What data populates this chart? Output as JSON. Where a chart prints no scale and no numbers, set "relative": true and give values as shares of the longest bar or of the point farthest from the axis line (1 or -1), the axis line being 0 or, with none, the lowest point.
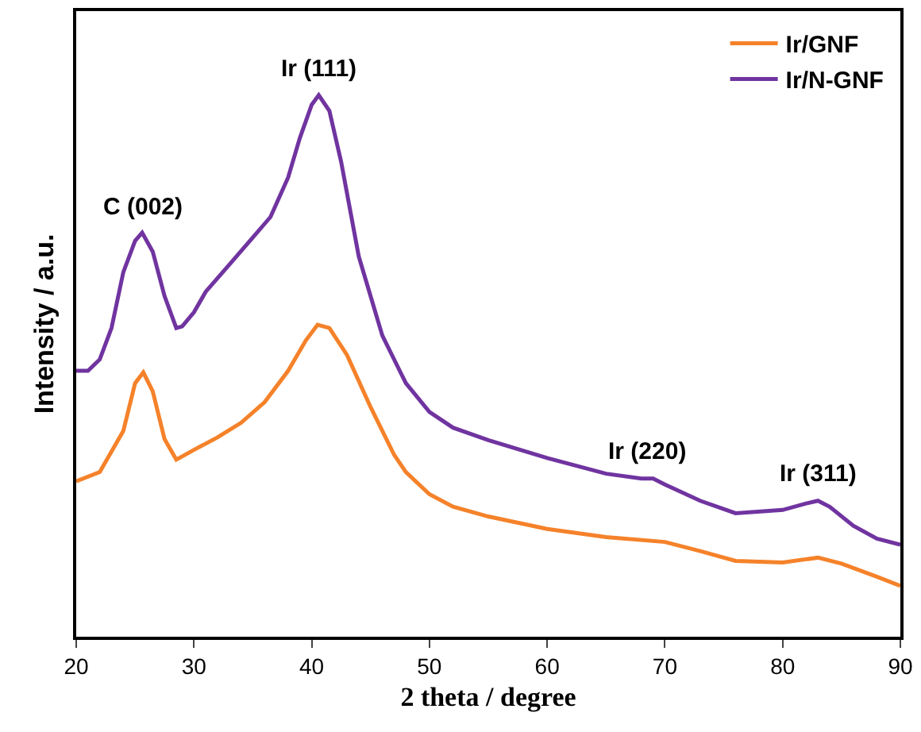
{
  "chart_data": {
    "type": "line",
    "relative": true,
    "xlabel": "2 theta / degree",
    "ylabel": "Intensity / a.u.",
    "xlim": [
      20,
      90
    ],
    "xticks": [
      20,
      30,
      40,
      50,
      60,
      70,
      80,
      90
    ],
    "legend": "top right",
    "marker": "none",
    "line_style": "solid",
    "tick_labels": "x",
    "series": [
      {
        "name": "Ir/GNF",
        "color": "#f5822a",
        "x": [
          20,
          22,
          24,
          25,
          25.7,
          26.5,
          27.5,
          28.5,
          29,
          30,
          32,
          34,
          36,
          38,
          39.5,
          40.5,
          41.5,
          43,
          45,
          47,
          48,
          50,
          52,
          55,
          60,
          65,
          70,
          73,
          76,
          80,
          83,
          85,
          88,
          90
        ],
        "values": [
          0.287,
          0.304,
          0.38,
          0.468,
          0.488,
          0.453,
          0.365,
          0.327,
          0.333,
          0.345,
          0.368,
          0.395,
          0.433,
          0.491,
          0.547,
          0.576,
          0.57,
          0.52,
          0.424,
          0.336,
          0.304,
          0.263,
          0.24,
          0.222,
          0.199,
          0.184,
          0.175,
          0.158,
          0.14,
          0.137,
          0.146,
          0.135,
          0.111,
          0.094
        ]
      },
      {
        "name": "Ir/N-GNF",
        "color": "#7034a0",
        "x": [
          20,
          21,
          22,
          23,
          24,
          25,
          25.6,
          26.5,
          27.5,
          28.5,
          29,
          30,
          31,
          33,
          35,
          36.5,
          38,
          39,
          40,
          40.6,
          41.5,
          42.5,
          44,
          46,
          48,
          50,
          52,
          55,
          60,
          65,
          68,
          69,
          70,
          73,
          76,
          80,
          82,
          83,
          84,
          86,
          88,
          90
        ],
        "values": [
          0.491,
          0.491,
          0.512,
          0.57,
          0.673,
          0.731,
          0.746,
          0.711,
          0.629,
          0.57,
          0.573,
          0.599,
          0.637,
          0.687,
          0.737,
          0.775,
          0.848,
          0.921,
          0.982,
          1,
          0.971,
          0.877,
          0.702,
          0.556,
          0.468,
          0.415,
          0.386,
          0.363,
          0.33,
          0.301,
          0.292,
          0.292,
          0.281,
          0.251,
          0.228,
          0.234,
          0.246,
          0.251,
          0.24,
          0.205,
          0.181,
          0.17
        ]
      }
    ],
    "annotations": [
      {
        "text": "C (002)",
        "x": 25.6,
        "y": 0.746
      },
      {
        "text": "Ir (111)",
        "x": 40.6,
        "y": 1
      },
      {
        "text": "Ir (220)",
        "x": 68.5,
        "y": 0.292
      },
      {
        "text": "Ir (311)",
        "x": 83,
        "y": 0.251
      }
    ]
  }
}
